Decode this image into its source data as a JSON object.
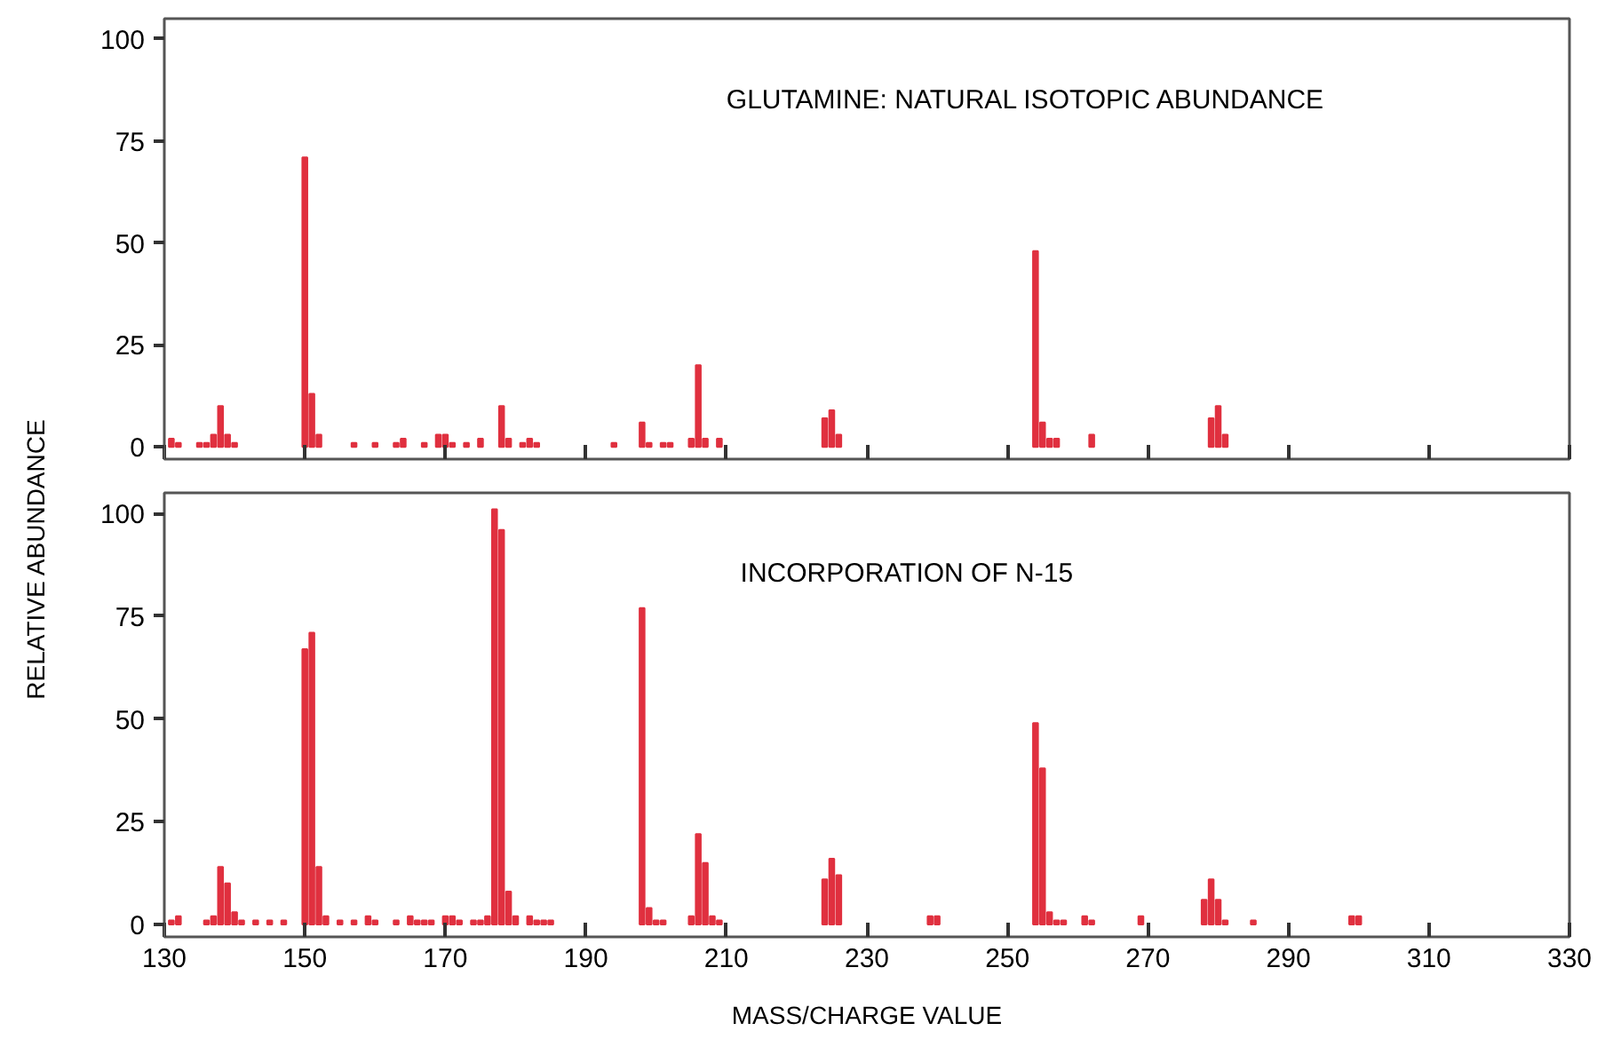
{
  "chart_data": [
    {
      "type": "bar",
      "title": "GLUTAMINE: NATURAL ISOTOPIC ABUNDANCE",
      "ylabel": "RELATIVE ABUNDANCE",
      "color": "#e0303f",
      "tick_labels": "y",
      "xlim": [
        130,
        330
      ],
      "ylim": [
        -3,
        105
      ],
      "xticks": [
        130,
        150,
        170,
        190,
        210,
        230,
        250,
        270,
        290,
        310,
        330
      ],
      "yticks": [
        0,
        25,
        50,
        75,
        100
      ],
      "x": [
        131,
        132,
        135,
        136,
        137,
        138,
        139,
        140,
        150,
        151,
        152,
        157,
        160,
        163,
        164,
        167,
        169,
        170,
        171,
        173,
        175,
        177,
        178,
        179,
        181,
        182,
        183,
        194,
        197,
        198,
        199,
        201,
        202,
        205,
        206,
        207,
        209,
        224,
        225,
        226,
        254,
        255,
        256,
        257,
        262,
        279,
        280,
        281
      ],
      "values": [
        2,
        1,
        1,
        1,
        3,
        10,
        3,
        1,
        71,
        13,
        3,
        1,
        1,
        1,
        2,
        1,
        3,
        3,
        1,
        1,
        2,
        null,
        10,
        2,
        1,
        2,
        1,
        1,
        null,
        6,
        1,
        1,
        1,
        2,
        20,
        2,
        2,
        7,
        9,
        3,
        48,
        6,
        2,
        2,
        3,
        7,
        10,
        3
      ]
    },
    {
      "type": "bar",
      "title": "INCORPORATION OF N-15",
      "xlabel": "MASS/CHARGE VALUE",
      "color": "#e0303f",
      "xlim": [
        130,
        330
      ],
      "ylim": [
        -3,
        105
      ],
      "xticks": [
        130,
        150,
        170,
        190,
        210,
        230,
        250,
        270,
        290,
        310,
        330
      ],
      "yticks": [
        0,
        25,
        50,
        75,
        100
      ],
      "x": [
        131,
        132,
        136,
        137,
        138,
        139,
        140,
        141,
        143,
        145,
        147,
        150,
        151,
        152,
        153,
        155,
        157,
        159,
        160,
        163,
        165,
        166,
        167,
        168,
        170,
        171,
        172,
        174,
        175,
        176,
        177,
        178,
        179,
        180,
        182,
        183,
        184,
        185,
        197,
        198,
        199,
        200,
        201,
        205,
        206,
        207,
        208,
        209,
        224,
        225,
        226,
        239,
        240,
        254,
        255,
        256,
        257,
        258,
        261,
        262,
        269,
        278,
        279,
        280,
        281,
        285,
        299,
        300
      ],
      "values": [
        1,
        2,
        1,
        2,
        14,
        10,
        3,
        1,
        1,
        1,
        1,
        67,
        71,
        14,
        2,
        1,
        1,
        2,
        1,
        1,
        2,
        1,
        1,
        1,
        2,
        2,
        1,
        1,
        1,
        2,
        101,
        96,
        8,
        2,
        2,
        1,
        1,
        1,
        null,
        77,
        4,
        1,
        1,
        2,
        22,
        15,
        2,
        1,
        11,
        16,
        12,
        2,
        2,
        49,
        38,
        3,
        1,
        1,
        2,
        1,
        2,
        6,
        11,
        6,
        1,
        1,
        2,
        2
      ]
    }
  ]
}
